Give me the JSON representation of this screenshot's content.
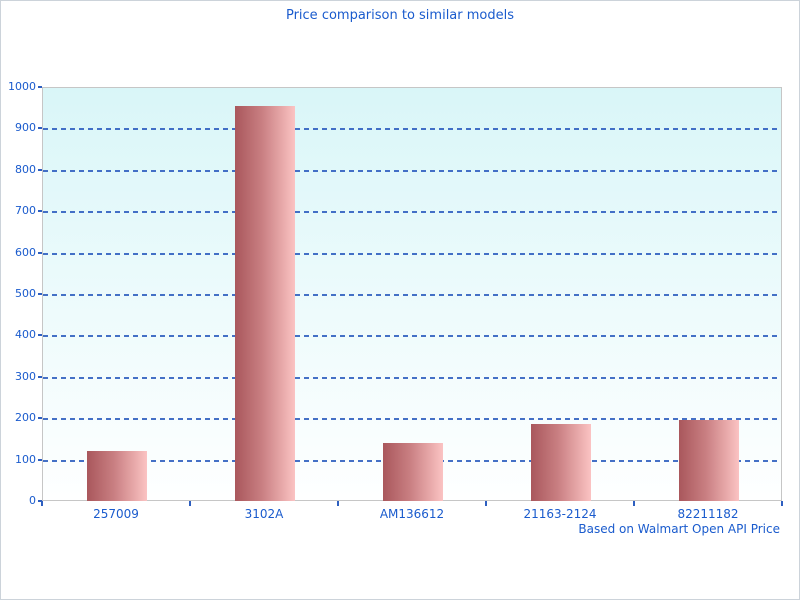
{
  "window": {
    "background": "#ffffff",
    "border_color": "#ccd3da"
  },
  "chart_data": {
    "type": "bar",
    "title": "Price comparison to similar models",
    "footer": "Based on Walmart Open API Price",
    "categories": [
      "257009",
      "3102A",
      "AM136612",
      "21163-2124",
      "82211182"
    ],
    "values": [
      120,
      955,
      140,
      185,
      195
    ],
    "xlabel": "",
    "ylabel": "",
    "ylim": [
      0,
      1000
    ],
    "ytick_interval": 100,
    "grid": "horizontal-dashed",
    "legend_position": "none",
    "colors": {
      "text_blue": "#1a5bcd",
      "gridline_blue": "#3060c0",
      "tick_blue": "#2e5fc0",
      "bar_gradient_left": "#a9575c",
      "bar_gradient_right": "#fbc3c3",
      "plot_bg_top": "#d9f6f8",
      "plot_bg_bottom": "#feffff",
      "plot_border": "#c6c6c6"
    }
  }
}
